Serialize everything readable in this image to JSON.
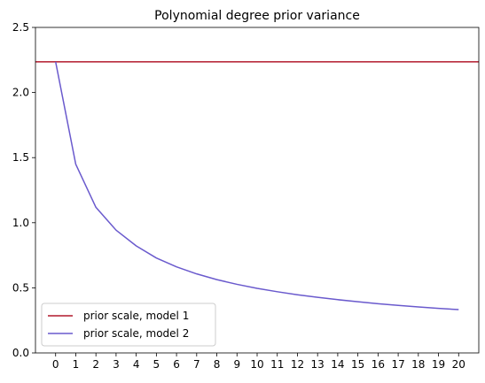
{
  "chart_data": {
    "type": "line",
    "title": "Polynomial degree prior variance",
    "xlabel": "",
    "ylabel": "",
    "x": [
      0,
      1,
      2,
      3,
      4,
      5,
      6,
      7,
      8,
      9,
      10,
      11,
      12,
      13,
      14,
      15,
      16,
      17,
      18,
      19,
      20
    ],
    "xtick_labels": [
      "0",
      "1",
      "2",
      "3",
      "4",
      "5",
      "6",
      "7",
      "8",
      "9",
      "10",
      "11",
      "12",
      "13",
      "14",
      "15",
      "16",
      "17",
      "18",
      "19",
      "20"
    ],
    "xlim": [
      -1,
      21
    ],
    "ylim": [
      0,
      2.5
    ],
    "yticks": [
      0.0,
      0.5,
      1.0,
      1.5,
      2.0,
      2.5
    ],
    "ytick_labels": [
      "0.0",
      "0.5",
      "1.0",
      "1.5",
      "2.0",
      "2.5"
    ],
    "grid": false,
    "legend_position": "lower-left",
    "series": [
      {
        "name": "prior scale, model 1",
        "kind": "horizontal-line",
        "color": "#b2182b",
        "value": 2.236
      },
      {
        "name": "prior scale, model 2",
        "kind": "line",
        "color": "#6a5acd",
        "values": [
          2.236,
          1.449,
          1.118,
          0.943,
          0.822,
          0.729,
          0.661,
          0.607,
          0.563,
          0.527,
          0.496,
          0.47,
          0.447,
          0.427,
          0.409,
          0.393,
          0.378,
          0.365,
          0.353,
          0.342,
          0.333
        ]
      }
    ]
  }
}
